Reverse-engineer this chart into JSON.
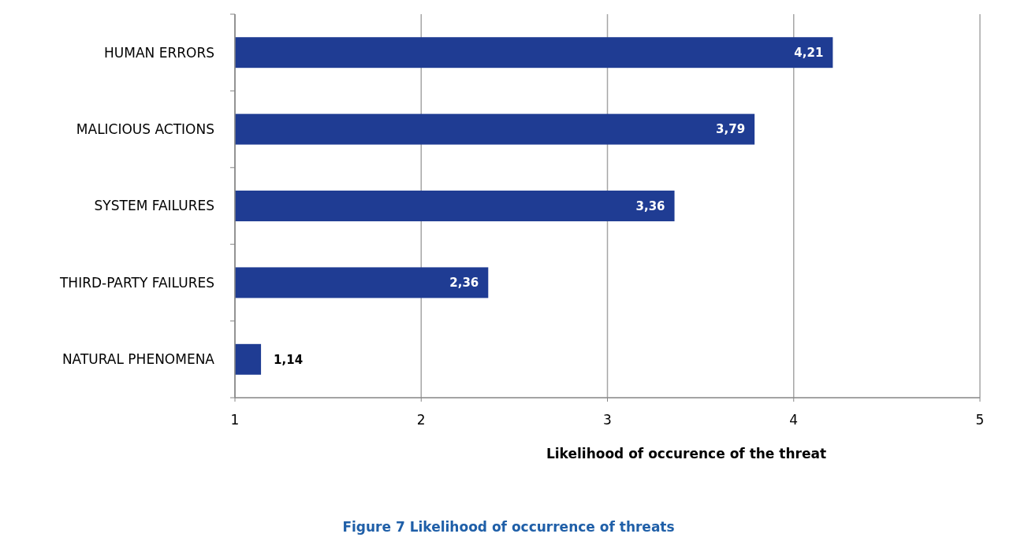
{
  "chart_data": {
    "type": "bar",
    "orientation": "horizontal",
    "categories": [
      "HUMAN ERRORS",
      "MALICIOUS ACTIONS",
      "SYSTEM FAILURES",
      "THIRD-PARTY FAILURES",
      "NATURAL PHENOMENA"
    ],
    "values": [
      4.21,
      3.79,
      3.36,
      2.36,
      1.14
    ],
    "value_labels": [
      "4,21",
      "3,79",
      "3,36",
      "2,36",
      "1,14"
    ],
    "color": "#1f3c93",
    "xlim": [
      1,
      5
    ],
    "xticks": [
      1,
      2,
      3,
      4,
      5
    ],
    "grid": "x",
    "xlabel": "Likelihood of occurence of the threat",
    "annotations": [
      "Figure 7 Likelihood of occurrence of threats"
    ]
  }
}
